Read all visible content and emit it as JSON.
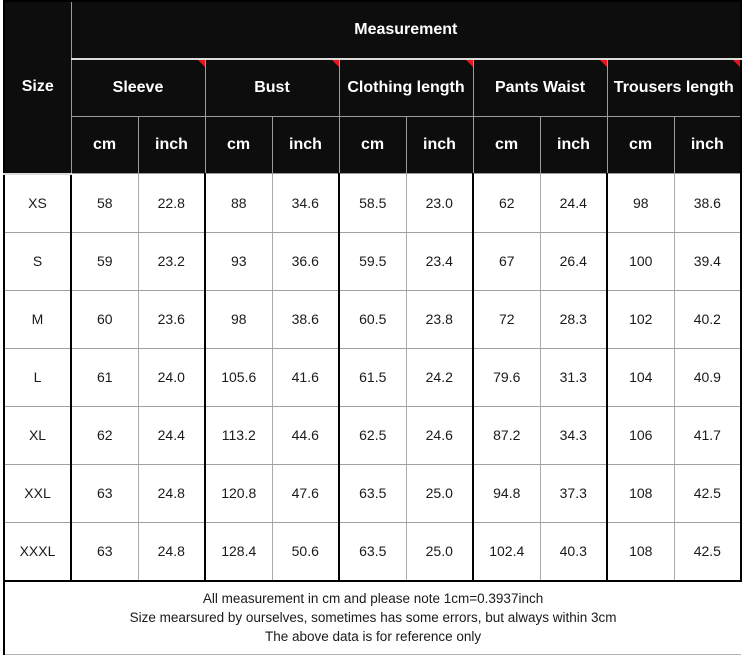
{
  "table": {
    "title": "Measurement",
    "size_header": "Size",
    "groups": [
      {
        "label": "Sleeve",
        "has_note_marker": true
      },
      {
        "label": "Bust",
        "has_note_marker": true
      },
      {
        "label": "Clothing length",
        "has_note_marker": true
      },
      {
        "label": "Pants Waist",
        "has_note_marker": true
      },
      {
        "label": "Trousers length",
        "has_note_marker": true
      }
    ],
    "unit_headers": [
      "cm",
      "inch"
    ],
    "rows": [
      {
        "size": "XS",
        "values": [
          "58",
          "22.8",
          "88",
          "34.6",
          "58.5",
          "23.0",
          "62",
          "24.4",
          "98",
          "38.6"
        ]
      },
      {
        "size": "S",
        "values": [
          "59",
          "23.2",
          "93",
          "36.6",
          "59.5",
          "23.4",
          "67",
          "26.4",
          "100",
          "39.4"
        ]
      },
      {
        "size": "M",
        "values": [
          "60",
          "23.6",
          "98",
          "38.6",
          "60.5",
          "23.8",
          "72",
          "28.3",
          "102",
          "40.2"
        ]
      },
      {
        "size": "L",
        "values": [
          "61",
          "24.0",
          "105.6",
          "41.6",
          "61.5",
          "24.2",
          "79.6",
          "31.3",
          "104",
          "40.9"
        ]
      },
      {
        "size": "XL",
        "values": [
          "62",
          "24.4",
          "113.2",
          "44.6",
          "62.5",
          "24.6",
          "87.2",
          "34.3",
          "106",
          "41.7"
        ]
      },
      {
        "size": "XXL",
        "values": [
          "63",
          "24.8",
          "120.8",
          "47.6",
          "63.5",
          "25.0",
          "94.8",
          "37.3",
          "108",
          "42.5"
        ]
      },
      {
        "size": "XXXL",
        "values": [
          "63",
          "24.8",
          "128.4",
          "50.6",
          "63.5",
          "25.0",
          "102.4",
          "40.3",
          "108",
          "42.5"
        ]
      }
    ],
    "footer_lines": [
      "All measurement in cm and please note 1cm=0.3937inch",
      "Size mearsured by ourselves, sometimes has some errors, but always within 3cm",
      "The above data is for reference only"
    ],
    "colors": {
      "header_bg": "#0d0d0d",
      "header_text": "#ffffff",
      "note_marker": "#e8151c",
      "grid_dark": "#000000",
      "grid_light": "#a0a0a0"
    }
  }
}
